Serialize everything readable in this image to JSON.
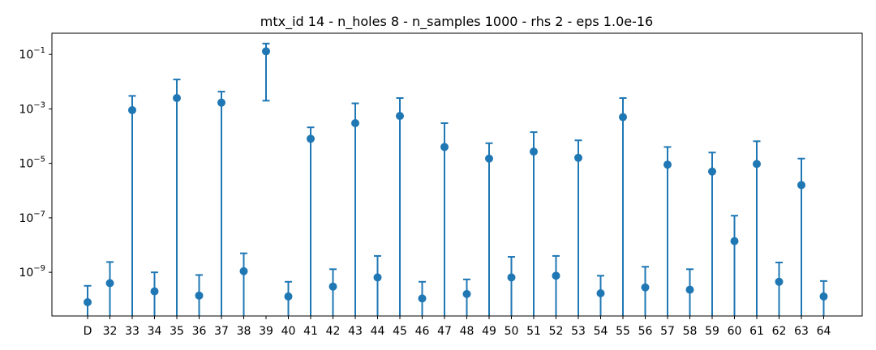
{
  "chart_data": {
    "type": "scatter",
    "title": "mtx_id 14 - n_holes 8 - n_samples 1000 - rhs 2 - eps 1.0e-16",
    "xlabel": "",
    "ylabel": "",
    "yscale": "log",
    "ylim": [
      2.5e-11,
      0.6
    ],
    "yticks": [
      {
        "value": 1e-09,
        "base": "10",
        "exp": "−9"
      },
      {
        "value": 1e-07,
        "base": "10",
        "exp": "−7"
      },
      {
        "value": 1e-05,
        "base": "10",
        "exp": "−5"
      },
      {
        "value": 0.001,
        "base": "10",
        "exp": "−3"
      },
      {
        "value": 0.1,
        "base": "10",
        "exp": "−1"
      }
    ],
    "grid": false,
    "color": "#1f77b4",
    "categories": [
      "D",
      "32",
      "33",
      "34",
      "35",
      "36",
      "37",
      "38",
      "39",
      "40",
      "41",
      "42",
      "43",
      "44",
      "45",
      "46",
      "47",
      "48",
      "49",
      "50",
      "51",
      "52",
      "53",
      "54",
      "55",
      "56",
      "57",
      "58",
      "59",
      "60",
      "61",
      "62",
      "63",
      "64"
    ],
    "values": [
      8e-11,
      4e-10,
      0.0009,
      2e-10,
      0.0025,
      1.4e-10,
      0.0017,
      1.1e-09,
      0.13,
      1.3e-10,
      8e-05,
      3e-10,
      0.0003,
      6.5e-10,
      0.00055,
      1.1e-10,
      4e-05,
      1.6e-10,
      1.5e-05,
      6.5e-10,
      2.7e-05,
      7.5e-10,
      1.6e-05,
      1.7e-10,
      0.0005,
      2.8e-10,
      9e-06,
      2.3e-10,
      5e-06,
      1.4e-08,
      9.5e-06,
      4.5e-10,
      1.6e-06,
      1.3e-10
    ],
    "err_low": [
      2.5e-11,
      2.5e-11,
      2.5e-11,
      2.5e-11,
      2.5e-11,
      2.5e-11,
      2.5e-11,
      2.5e-11,
      0.002,
      2.5e-11,
      2.5e-11,
      2.5e-11,
      2.5e-11,
      2.5e-11,
      2.5e-11,
      2.5e-11,
      2.5e-11,
      2.5e-11,
      2.5e-11,
      2.5e-11,
      2.5e-11,
      2.5e-11,
      2.5e-11,
      2.5e-11,
      2.5e-11,
      2.5e-11,
      2.5e-11,
      2.5e-11,
      2.5e-11,
      2.5e-11,
      2.5e-11,
      2.5e-11,
      2.5e-11,
      2.5e-11
    ],
    "err_high": [
      3.2e-10,
      2.4e-09,
      0.003,
      1e-09,
      0.012,
      8e-10,
      0.0043,
      5e-09,
      0.25,
      4.5e-10,
      0.00021,
      1.3e-09,
      0.0016,
      4e-09,
      0.0025,
      4.5e-10,
      0.0003,
      5.5e-10,
      5.5e-05,
      3.7e-09,
      0.00014,
      4e-09,
      7e-05,
      7.5e-10,
      0.0025,
      1.6e-09,
      4e-05,
      1.3e-09,
      2.5e-05,
      1.2e-07,
      6.5e-05,
      2.3e-09,
      1.5e-05,
      4.8e-10
    ]
  }
}
